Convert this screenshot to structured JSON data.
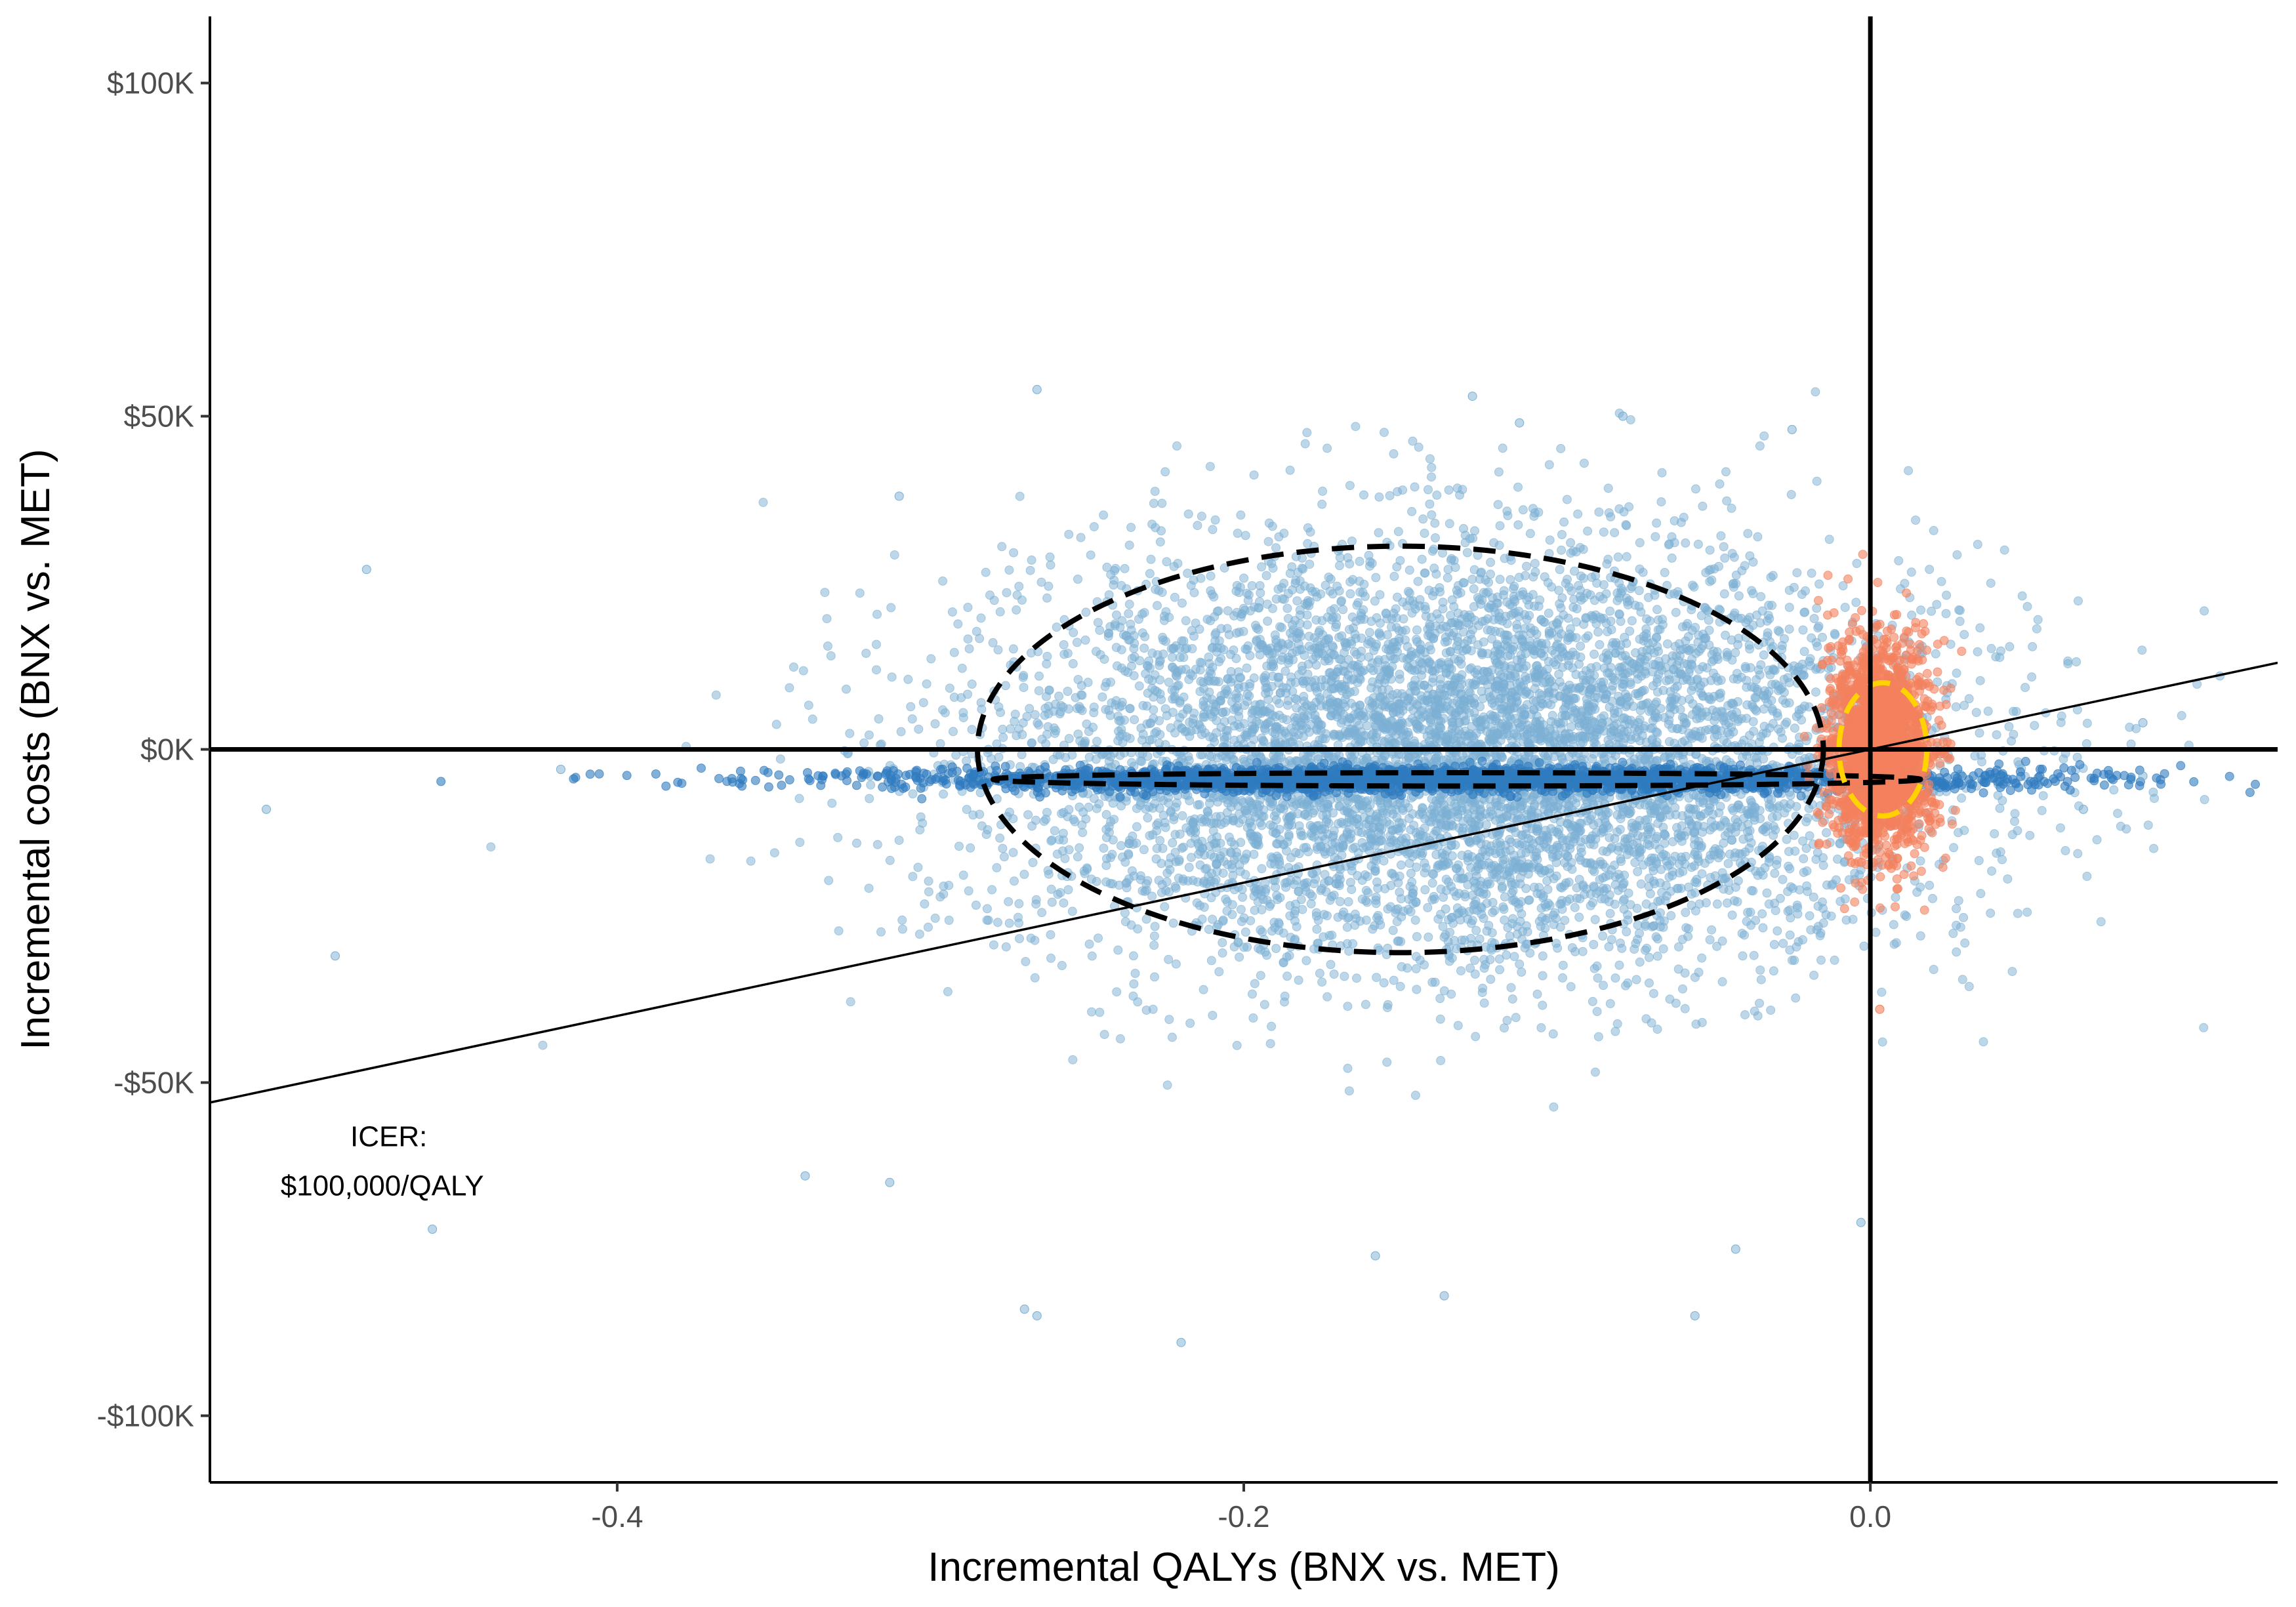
{
  "chart_data": {
    "type": "scatter",
    "title": "",
    "xlabel": "Incremental QALYs (BNX vs. MET)",
    "ylabel": "Incremental costs (BNX vs. MET)",
    "xlim": [
      -0.53,
      0.13
    ],
    "ylim": [
      -110000,
      110000
    ],
    "x_ticks": [
      {
        "value": -0.4,
        "label": "-0.4"
      },
      {
        "value": -0.2,
        "label": "-0.2"
      },
      {
        "value": 0.0,
        "label": "0.0"
      }
    ],
    "y_ticks": [
      {
        "value": 100000,
        "label": "$100K"
      },
      {
        "value": 50000,
        "label": "$50K"
      },
      {
        "value": 0,
        "label": "$0K"
      },
      {
        "value": -50000,
        "label": "-$50K"
      },
      {
        "value": -100000,
        "label": "-$100K"
      }
    ],
    "grid": false,
    "legend": "none",
    "series": [
      {
        "color": "#7bafd4",
        "opacity": 0.5,
        "cloud": {
          "x_mean": -0.13,
          "x_sd": 0.075,
          "y_mean": -1000,
          "y_sd": 15500,
          "n": 7000
        },
        "band": {
          "x_mean": -0.14,
          "x_sd": 0.09,
          "y_mean": -4500,
          "y_sd": 900,
          "n": 2600,
          "color": "#2f7bbf"
        },
        "outliers": [
          {
            "x": -0.266,
            "y": 54000
          },
          {
            "x": -0.127,
            "y": 53000
          },
          {
            "x": -0.079,
            "y": 50000
          },
          {
            "x": -0.112,
            "y": 49000
          },
          {
            "x": -0.025,
            "y": 48000
          },
          {
            "x": -0.31,
            "y": 38000
          },
          {
            "x": -0.48,
            "y": 27000
          },
          {
            "x": -0.49,
            "y": -31000
          },
          {
            "x": -0.459,
            "y": -72000
          },
          {
            "x": -0.34,
            "y": -64000
          },
          {
            "x": -0.313,
            "y": -65000
          },
          {
            "x": -0.27,
            "y": -84000
          },
          {
            "x": -0.266,
            "y": -85000
          },
          {
            "x": -0.22,
            "y": -89000
          },
          {
            "x": -0.136,
            "y": -82000
          },
          {
            "x": -0.056,
            "y": -85000
          },
          {
            "x": -0.043,
            "y": -75000
          },
          {
            "x": -0.003,
            "y": -71000
          },
          {
            "x": -0.158,
            "y": -76000
          },
          {
            "x": -0.512,
            "y": -9000
          },
          {
            "x": 0.068,
            "y": -9000
          },
          {
            "x": 0.087,
            "y": 4000
          },
          {
            "x": 0.087,
            "y": -4000
          },
          {
            "x": -0.418,
            "y": -3000
          }
        ]
      },
      {
        "color": "#f4815e",
        "opacity": 0.6,
        "cloud": {
          "x_mean": 0.003,
          "x_sd": 0.008,
          "y_mean": 0,
          "y_sd": 7500,
          "n": 2200
        },
        "outliers": [
          {
            "x": 0.003,
            "y": -39000
          }
        ]
      }
    ],
    "ellipses": [
      {
        "cx": -0.15,
        "cy": 0,
        "rx": 0.135,
        "ry": 30500,
        "color": "#000000"
      },
      {
        "cx": -0.132,
        "cy": -4500,
        "rx": 0.148,
        "ry": 1000,
        "color": "#000000"
      },
      {
        "cx": 0.004,
        "cy": 0,
        "rx": 0.014,
        "ry": 10000,
        "color": "#ffd200"
      }
    ],
    "wtp_line": {
      "slope": 100000,
      "label_line1": "ICER:",
      "label_line2": "$100,000/QALY",
      "label_x": -0.475,
      "label_y": -62000
    }
  }
}
